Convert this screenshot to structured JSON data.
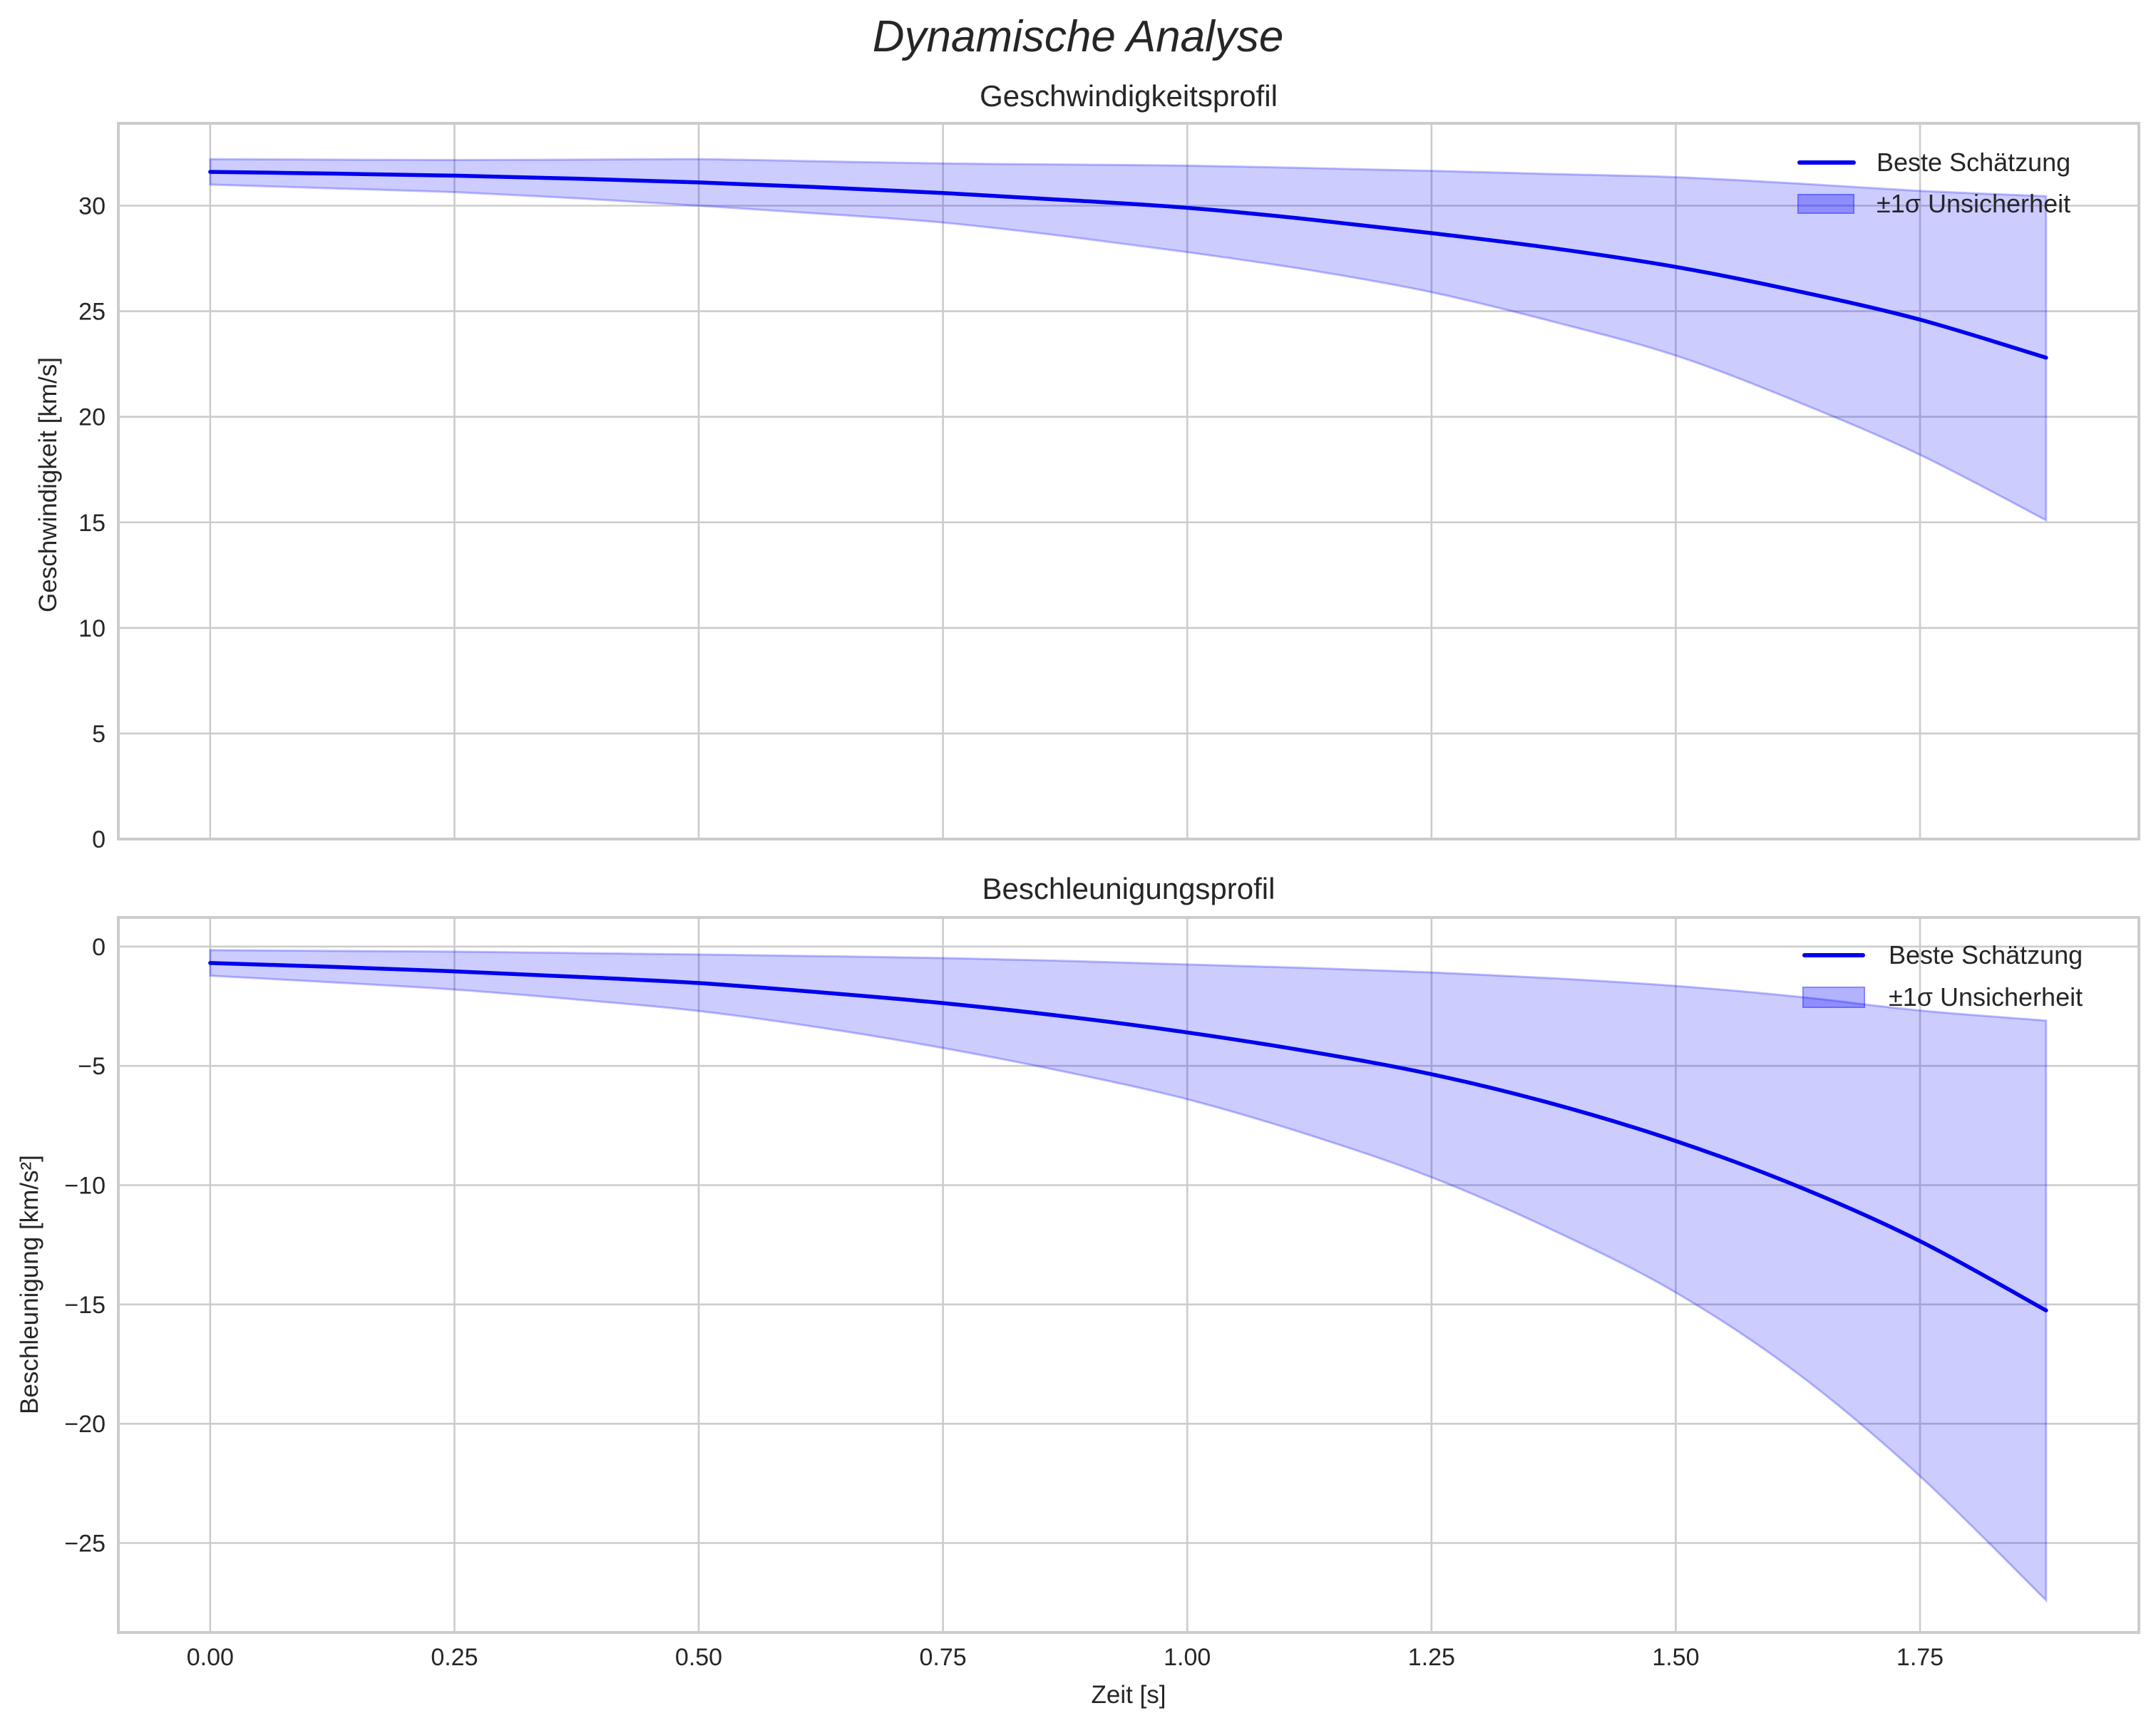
{
  "figure": {
    "title": "Dynamische Analyse",
    "xlabel": "Zeit [s]"
  },
  "colors": {
    "line": "#0000ee",
    "band_fill": "rgba(0,0,255,0.2)",
    "band_edge": "rgba(0,0,255,0.25)",
    "grid": "#cccccc",
    "spine": "#cccccc",
    "text": "#262626"
  },
  "legend": {
    "line_label": "Beste Schätzung",
    "band_label": "±1σ Unsicherheit"
  },
  "chart_data": [
    {
      "type": "line",
      "title": "Geschwindigkeitsprofil",
      "xlabel": "",
      "ylabel": "Geschwindigkeit [km/s]",
      "xlim": [
        -0.094,
        1.974
      ],
      "ylim": [
        0,
        33.9
      ],
      "xticks": [
        0.0,
        0.25,
        0.5,
        0.75,
        1.0,
        1.25,
        1.5,
        1.75
      ],
      "xtick_labels": [],
      "yticks": [
        0,
        5,
        10,
        15,
        20,
        25,
        30
      ],
      "ytick_labels": [
        "0",
        "5",
        "10",
        "15",
        "20",
        "25",
        "30"
      ],
      "grid": true,
      "legend_position": "upper right",
      "x": [
        0.0,
        0.125,
        0.25,
        0.375,
        0.5,
        0.625,
        0.75,
        0.875,
        1.0,
        1.125,
        1.25,
        1.375,
        1.5,
        1.625,
        1.75,
        1.879
      ],
      "series": [
        {
          "name": "Beste Schätzung",
          "role": "line",
          "values": [
            31.6,
            31.52,
            31.42,
            31.28,
            31.1,
            30.87,
            30.6,
            30.27,
            29.9,
            29.35,
            28.7,
            27.98,
            27.1,
            25.95,
            24.6,
            22.8
          ]
        },
        {
          "name": "±1σ Unsicherheit (obere Grenze)",
          "role": "band_upper",
          "values": [
            32.2,
            32.18,
            32.16,
            32.18,
            32.2,
            32.1,
            32.0,
            31.95,
            31.9,
            31.78,
            31.65,
            31.5,
            31.35,
            31.05,
            30.7,
            30.45
          ]
        },
        {
          "name": "±1σ Unsicherheit (untere Grenze)",
          "role": "band_lower",
          "values": [
            31.0,
            30.82,
            30.64,
            30.35,
            30.0,
            29.62,
            29.2,
            28.55,
            27.8,
            26.95,
            25.9,
            24.5,
            22.9,
            20.7,
            18.2,
            15.1
          ]
        }
      ]
    },
    {
      "type": "line",
      "title": "Beschleunigungsprofil",
      "xlabel": "Zeit [s]",
      "ylabel": "Beschleunigung [km/s²]",
      "xlim": [
        -0.094,
        1.974
      ],
      "ylim": [
        -28.75,
        1.22
      ],
      "xticks": [
        0.0,
        0.25,
        0.5,
        0.75,
        1.0,
        1.25,
        1.5,
        1.75
      ],
      "xtick_labels": [
        "0.00",
        "0.25",
        "0.50",
        "0.75",
        "1.00",
        "1.25",
        "1.50",
        "1.75"
      ],
      "yticks": [
        0,
        -5,
        -10,
        -15,
        -20,
        -25
      ],
      "ytick_labels": [
        "0",
        "−5",
        "−10",
        "−15",
        "−20",
        "−25"
      ],
      "grid": true,
      "legend_position": "upper right",
      "x": [
        0.0,
        0.125,
        0.25,
        0.375,
        0.5,
        0.625,
        0.75,
        0.875,
        1.0,
        1.125,
        1.25,
        1.375,
        1.5,
        1.625,
        1.75,
        1.879
      ],
      "series": [
        {
          "name": "Beste Schätzung",
          "role": "line",
          "values": [
            -0.69,
            -0.85,
            -1.04,
            -1.27,
            -1.53,
            -1.92,
            -2.37,
            -2.93,
            -3.6,
            -4.4,
            -5.35,
            -6.6,
            -8.15,
            -10.05,
            -12.35,
            -15.25
          ]
        },
        {
          "name": "±1σ Unsicherheit (obere Grenze)",
          "role": "band_upper",
          "values": [
            -0.15,
            -0.18,
            -0.21,
            -0.27,
            -0.33,
            -0.4,
            -0.48,
            -0.6,
            -0.75,
            -0.9,
            -1.08,
            -1.33,
            -1.65,
            -2.1,
            -2.68,
            -3.1
          ]
        },
        {
          "name": "±1σ Unsicherheit (untere Grenze)",
          "role": "band_lower",
          "values": [
            -1.22,
            -1.5,
            -1.8,
            -2.22,
            -2.7,
            -3.4,
            -4.25,
            -5.25,
            -6.4,
            -7.9,
            -9.67,
            -11.9,
            -14.5,
            -17.9,
            -22.2,
            -27.4
          ]
        }
      ]
    }
  ]
}
